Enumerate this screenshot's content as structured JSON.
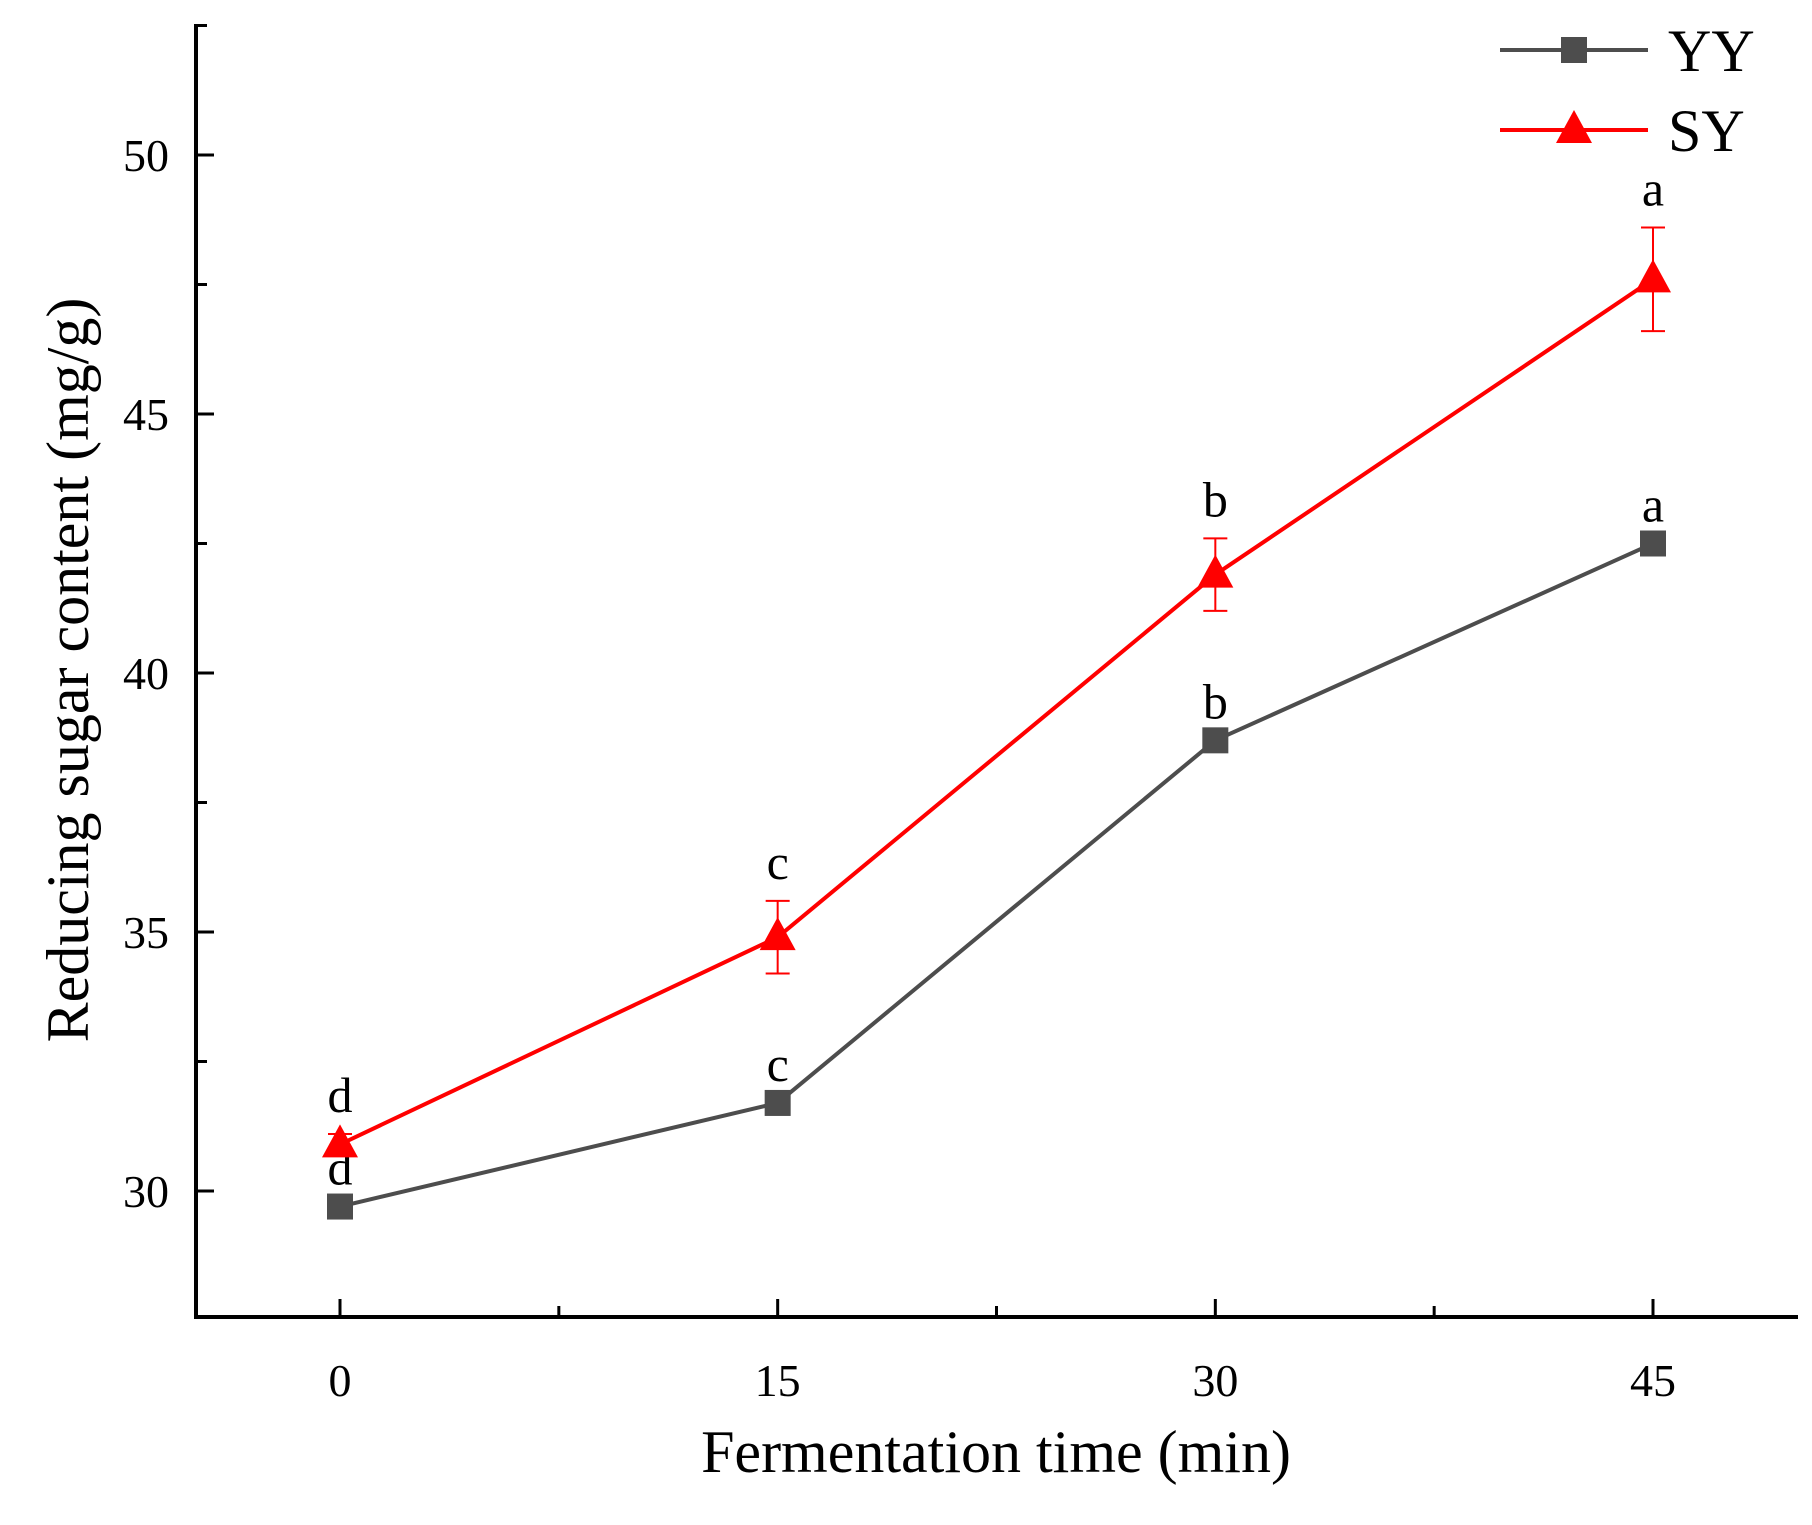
{
  "chart_data": {
    "type": "line",
    "title": "",
    "xlabel": "Fermentation time (min)",
    "ylabel": "Reducing sugar content (mg/g)",
    "x": [
      0,
      15,
      30,
      45
    ],
    "x_tick_labels": [
      "0",
      "15",
      "30",
      "45"
    ],
    "xlim": [
      -5,
      50
    ],
    "ylim": [
      27.5,
      52.5
    ],
    "y_ticks": [
      30,
      35,
      40,
      45,
      50
    ],
    "y_tick_labels": [
      "30",
      "35",
      "40",
      "45",
      "50"
    ],
    "grid": false,
    "legend_position": "top-right",
    "series": [
      {
        "name": "YY",
        "color": "#4d4d4d",
        "marker": "square",
        "values": [
          29.7,
          31.7,
          38.7,
          42.5
        ],
        "errors": [
          0,
          0,
          0,
          0
        ],
        "labels": [
          "d",
          "c",
          "b",
          "a"
        ]
      },
      {
        "name": "SY",
        "color": "#ff0000",
        "marker": "triangle",
        "values": [
          30.9,
          34.9,
          41.9,
          47.6
        ],
        "errors": [
          0.2,
          0.7,
          0.7,
          1.0
        ],
        "labels": [
          "d",
          "c",
          "b",
          "a"
        ]
      }
    ]
  }
}
